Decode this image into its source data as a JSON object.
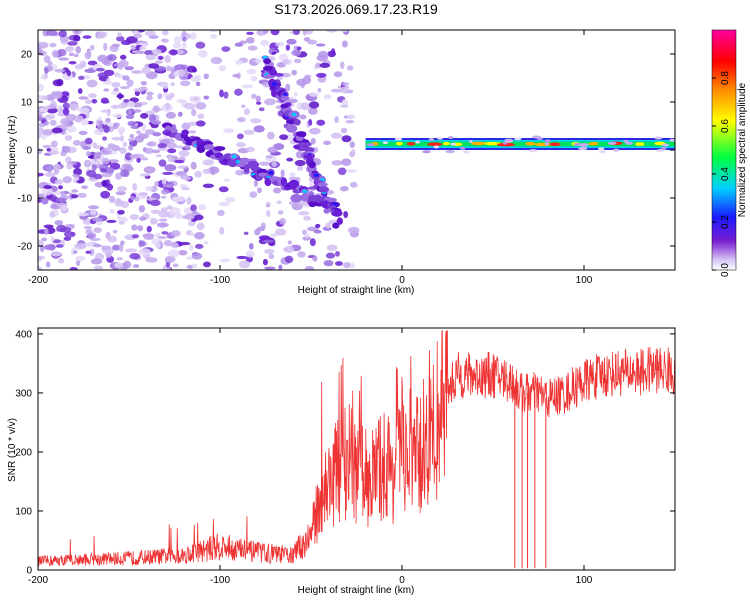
{
  "title": "S173.2026.069.17.23.R19",
  "colors": {
    "spectrogram_base": "#6a1fd6",
    "spectrogram_light": "#c9b3ef",
    "snr_line": "#ee3333",
    "axis": "#000000"
  },
  "chart_data": [
    {
      "type": "heatmap",
      "name": "spectrogram",
      "title": "S173.2026.069.17.23.R19",
      "xlabel": "Height of straight line (km)",
      "ylabel": "Frequency (Hz)",
      "xlim": [
        -200,
        150
      ],
      "ylim": [
        -25,
        25
      ],
      "xticks": [
        -200,
        -100,
        0,
        100
      ],
      "xtick_labels": [
        "-200",
        "-100",
        "0",
        "100"
      ],
      "yticks": [
        -20,
        -10,
        0,
        10,
        20
      ],
      "ytick_labels": [
        "-20",
        "-10",
        "0",
        "10",
        "20"
      ],
      "colorbar": {
        "label": "Normalized spectral amplitude",
        "range": [
          0.0,
          1.0
        ],
        "ticks": [
          0.0,
          0.2,
          0.4,
          0.6,
          0.8
        ],
        "tick_labels": [
          "0.0",
          "0.2",
          "0.4",
          "0.6",
          "0.8"
        ],
        "colormap": [
          "#ffffff",
          "#7a1fd0",
          "#1a1aff",
          "#00d0ff",
          "#00ff40",
          "#ffff00",
          "#ff8c00",
          "#ff0000",
          "#ff00a0"
        ]
      },
      "features": [
        {
          "name": "main-line",
          "x": [
            -20,
            150
          ],
          "y": [
            1,
            1.5
          ],
          "amplitude": 0.9
        },
        {
          "name": "descending-branch-lower",
          "x": [
            -130,
            -40
          ],
          "y": [
            5,
            -12
          ],
          "amplitude": 0.35
        },
        {
          "name": "descending-branch-upper",
          "x": [
            -75,
            -35
          ],
          "y": [
            18,
            -15
          ],
          "amplitude": 0.35
        }
      ]
    },
    {
      "type": "line",
      "name": "snr",
      "xlabel": "Height of straight line (km)",
      "ylabel": "SNR (10 * v/v)",
      "xlim": [
        -200,
        150
      ],
      "ylim": [
        0,
        410
      ],
      "xticks": [
        -200,
        -100,
        0,
        100
      ],
      "xtick_labels": [
        "-200",
        "-100",
        "0",
        "100"
      ],
      "yticks": [
        0,
        100,
        200,
        300,
        400
      ],
      "ytick_labels": [
        "0",
        "100",
        "200",
        "300",
        "400"
      ],
      "series": [
        {
          "name": "SNR",
          "x": [
            -200,
            -150,
            -120,
            -100,
            -80,
            -60,
            -50,
            -45,
            -40,
            -35,
            -30,
            -25,
            -20,
            -15,
            -10,
            -5,
            0,
            5,
            10,
            15,
            20,
            25,
            30,
            40,
            50,
            60,
            65,
            70,
            75,
            80,
            90,
            100,
            110,
            120,
            130,
            140,
            150
          ],
          "values": [
            15,
            20,
            25,
            40,
            30,
            25,
            60,
            120,
            150,
            170,
            190,
            160,
            160,
            160,
            180,
            170,
            200,
            200,
            190,
            210,
            260,
            300,
            330,
            330,
            330,
            320,
            300,
            300,
            300,
            290,
            300,
            320,
            330,
            335,
            335,
            340,
            335
          ]
        }
      ],
      "dropouts_x": [
        62,
        66,
        69,
        73,
        79
      ]
    }
  ]
}
